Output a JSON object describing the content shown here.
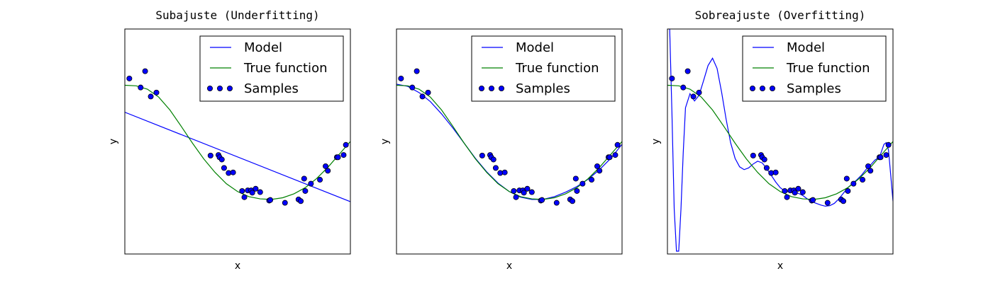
{
  "chart_data": [
    {
      "type": "line",
      "title": "Subajuste (Underfitting)",
      "xlabel": "x",
      "ylabel": "y",
      "xlim": [
        0,
        1
      ],
      "ylim": [
        -2,
        2
      ],
      "polynomial_degree": 1,
      "grid": false,
      "legend_position": "top-right",
      "legend": [
        "Model",
        "True function",
        "Samples"
      ],
      "colors": {
        "model": "#0000ff",
        "true_function": "#008000",
        "samples": "#0000ff"
      },
      "series": [
        {
          "name": "Model",
          "kind": "line",
          "x": [
            0,
            1
          ],
          "y": [
            0.52,
            -1.07
          ]
        },
        {
          "name": "True function",
          "kind": "line",
          "source": "true_function"
        },
        {
          "name": "Samples",
          "kind": "scatter",
          "source": "samples"
        }
      ]
    },
    {
      "type": "line",
      "title": "",
      "xlabel": "x",
      "ylabel": "y",
      "xlim": [
        0,
        1
      ],
      "ylim": [
        -2,
        2
      ],
      "polynomial_degree": 4,
      "grid": false,
      "legend_position": "top-right",
      "legend": [
        "Model",
        "True function",
        "Samples"
      ],
      "colors": {
        "model": "#0000ff",
        "true_function": "#008000",
        "samples": "#0000ff"
      },
      "series": [
        {
          "name": "Model",
          "kind": "line",
          "x": [
            0,
            0.05,
            0.1,
            0.15,
            0.2,
            0.25,
            0.3,
            0.35,
            0.4,
            0.45,
            0.5,
            0.55,
            0.6,
            0.65,
            0.7,
            0.75,
            0.8,
            0.85,
            0.9,
            0.95,
            1
          ],
          "y": [
            1.02,
            0.98,
            0.87,
            0.71,
            0.49,
            0.24,
            -0.03,
            -0.3,
            -0.54,
            -0.74,
            -0.89,
            -0.99,
            -1.03,
            -1.03,
            -0.98,
            -0.9,
            -0.8,
            -0.67,
            -0.5,
            -0.3,
            -0.05
          ]
        },
        {
          "name": "True function",
          "kind": "line",
          "source": "true_function"
        },
        {
          "name": "Samples",
          "kind": "scatter",
          "source": "samples"
        }
      ]
    },
    {
      "type": "line",
      "title": "Sobreajuste (Overfitting)",
      "xlabel": "x",
      "ylabel": "y",
      "xlim": [
        0,
        1
      ],
      "ylim": [
        -2,
        2
      ],
      "polynomial_degree": 15,
      "grid": false,
      "legend_position": "top-right",
      "legend": [
        "Model",
        "True function",
        "Samples"
      ],
      "colors": {
        "model": "#0000ff",
        "true_function": "#008000",
        "samples": "#0000ff"
      },
      "series": [
        {
          "name": "Model",
          "kind": "line",
          "x": [
            0.0,
            0.01,
            0.02,
            0.03,
            0.04,
            0.05,
            0.06,
            0.07,
            0.08,
            0.1,
            0.12,
            0.14,
            0.16,
            0.18,
            0.2,
            0.22,
            0.24,
            0.26,
            0.28,
            0.3,
            0.32,
            0.34,
            0.36,
            0.38,
            0.4,
            0.42,
            0.44,
            0.46,
            0.48,
            0.5,
            0.52,
            0.54,
            0.56,
            0.58,
            0.6,
            0.62,
            0.64,
            0.66,
            0.68,
            0.7,
            0.72,
            0.74,
            0.76,
            0.78,
            0.8,
            0.82,
            0.84,
            0.86,
            0.88,
            0.9,
            0.92,
            0.94,
            0.96,
            0.97,
            0.98,
            0.99,
            1.0
          ],
          "y": [
            2.6,
            2.0,
            0.5,
            -1.2,
            -1.95,
            -1.95,
            -1.2,
            -0.2,
            0.6,
            0.85,
            0.72,
            0.82,
            1.08,
            1.35,
            1.48,
            1.3,
            0.88,
            0.4,
            -0.02,
            -0.3,
            -0.45,
            -0.5,
            -0.47,
            -0.4,
            -0.35,
            -0.38,
            -0.48,
            -0.6,
            -0.72,
            -0.82,
            -0.88,
            -0.9,
            -0.9,
            -0.92,
            -0.96,
            -1.02,
            -1.07,
            -1.1,
            -1.13,
            -1.15,
            -1.14,
            -1.1,
            -1.02,
            -0.92,
            -0.82,
            -0.75,
            -0.68,
            -0.6,
            -0.5,
            -0.42,
            -0.33,
            -0.28,
            -0.05,
            -0.02,
            -0.15,
            -0.6,
            -1.06
          ]
        },
        {
          "name": "True function",
          "kind": "line",
          "source": "true_function"
        },
        {
          "name": "Samples",
          "kind": "scatter",
          "source": "samples"
        }
      ]
    }
  ],
  "true_function": {
    "x": [
      0,
      0.05,
      0.1,
      0.15,
      0.2,
      0.25,
      0.3,
      0.35,
      0.4,
      0.45,
      0.5,
      0.55,
      0.6,
      0.65,
      0.7,
      0.75,
      0.8,
      0.85,
      0.9,
      0.95,
      1
    ],
    "y": [
      1.0,
      0.99,
      0.93,
      0.79,
      0.56,
      0.27,
      -0.03,
      -0.31,
      -0.55,
      -0.75,
      -0.89,
      -0.98,
      -1.02,
      -1.03,
      -1.0,
      -0.93,
      -0.82,
      -0.66,
      -0.46,
      -0.23,
      0.0
    ]
  },
  "samples": {
    "x": [
      0.02,
      0.09,
      0.07,
      0.115,
      0.14,
      0.38,
      0.415,
      0.42,
      0.43,
      0.44,
      0.46,
      0.48,
      0.52,
      0.53,
      0.545,
      0.56,
      0.565,
      0.58,
      0.6,
      0.64,
      0.645,
      0.71,
      0.77,
      0.78,
      0.795,
      0.8,
      0.825,
      0.865,
      0.89,
      0.9,
      0.94,
      0.945,
      0.97,
      0.98
    ],
    "y": [
      1.12,
      1.25,
      0.96,
      0.8,
      0.87,
      -0.25,
      -0.24,
      -0.28,
      -0.32,
      -0.47,
      -0.56,
      -0.55,
      -0.88,
      -0.99,
      -0.87,
      -0.87,
      -0.91,
      -0.84,
      -0.9,
      -1.05,
      -1.04,
      -1.09,
      -1.03,
      -1.06,
      -0.66,
      -0.88,
      -0.75,
      -0.68,
      -0.44,
      -0.52,
      -0.28,
      -0.28,
      -0.24,
      -0.06
    ]
  }
}
